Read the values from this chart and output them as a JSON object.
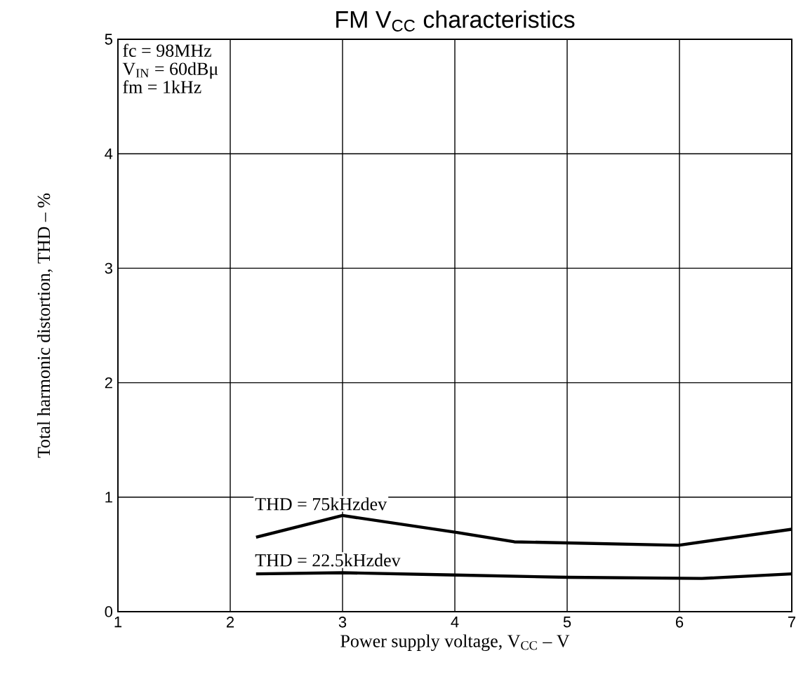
{
  "chart_data": {
    "type": "line",
    "title": "FM V$_{CC}$ characteristics",
    "xlabel": "Power supply voltage, V$_{CC}$  –  V",
    "ylabel": "Total harmonic distortion, THD  –  %",
    "xlim": [
      1,
      7
    ],
    "xticks": [
      1,
      2,
      3,
      4,
      5,
      6,
      7
    ],
    "ylim": [
      0,
      5
    ],
    "yticks": [
      0,
      1,
      2,
      3,
      4,
      5
    ],
    "grid": true,
    "annotations": [
      "fc = 98MHz",
      "V$_{IN}$ = 60dBμ",
      "fm = 1kHz"
    ],
    "series": [
      {
        "name": "THD = 75kHzdev",
        "color": "#000000",
        "x": [
          2.23,
          3.0,
          4.03,
          4.53,
          5.99,
          7.0
        ],
        "values": [
          0.65,
          0.84,
          0.69,
          0.61,
          0.58,
          0.72
        ]
      },
      {
        "name": "THD = 22.5kHzdev",
        "color": "#000000",
        "x": [
          2.23,
          3.0,
          4.0,
          5.0,
          6.2,
          7.0
        ],
        "values": [
          0.33,
          0.34,
          0.32,
          0.3,
          0.29,
          0.33
        ]
      }
    ]
  }
}
